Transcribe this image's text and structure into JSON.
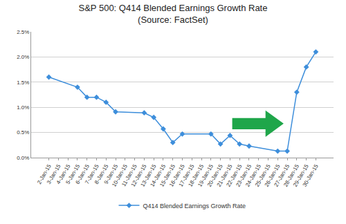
{
  "chart_data": {
    "type": "line",
    "title": "S&P 500: Q414 Blended Earnings Growth Rate",
    "subtitle": "(Source: FactSet)",
    "categories": [
      "2-Jan-15",
      "3-Jan-15",
      "4-Jan-15",
      "5-Jan-15",
      "6-Jan-15",
      "7-Jan-15",
      "8-Jan-15",
      "9-Jan-15",
      "10-Jan-15",
      "11-Jan-15",
      "12-Jan-15",
      "13-Jan-15",
      "14-Jan-15",
      "15-Jan-15",
      "16-Jan-15",
      "17-Jan-15",
      "18-Jan-15",
      "19-Jan-15",
      "20-Jan-15",
      "21-Jan-15",
      "22-Jan-15",
      "23-Jan-15",
      "24-Jan-15",
      "25-Jan-15",
      "26-Jan-15",
      "27-Jan-15",
      "28-Jan-15",
      "29-Jan-15",
      "30-Jan-15"
    ],
    "series": [
      {
        "name": "Q414 Blended Earnings Growth Rate",
        "color": "#3d8edb",
        "marker": "diamond",
        "values": [
          1.6,
          null,
          null,
          1.4,
          1.2,
          1.2,
          1.1,
          0.91,
          null,
          null,
          0.89,
          0.8,
          0.57,
          0.3,
          0.47,
          null,
          null,
          0.47,
          0.27,
          0.44,
          0.27,
          0.23,
          null,
          null,
          0.13,
          0.13,
          1.3,
          1.8,
          2.1
        ]
      }
    ],
    "ylim": [
      0,
      2.5
    ],
    "yticks": [
      {
        "value": 0,
        "label": "0.0%"
      },
      {
        "value": 0.5,
        "label": "0.5%"
      },
      {
        "value": 1,
        "label": "1.0%"
      },
      {
        "value": 1.5,
        "label": "1.5%"
      },
      {
        "value": 2,
        "label": "2.0%"
      },
      {
        "value": 2.5,
        "label": "2.5%"
      }
    ],
    "grid": true,
    "legend": "bottom"
  }
}
